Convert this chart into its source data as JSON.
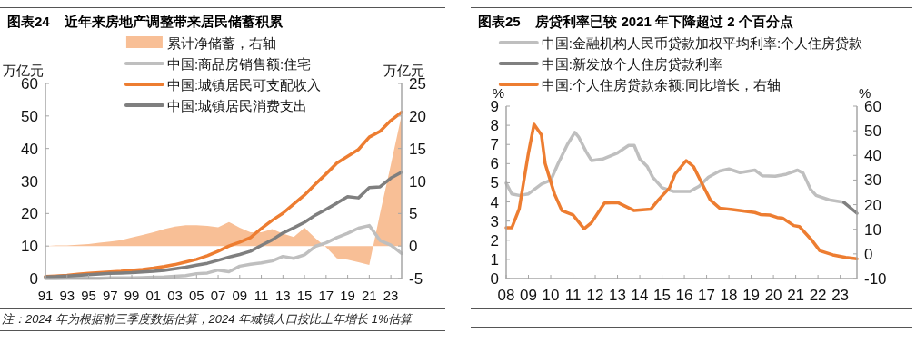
{
  "chart_data": [
    {
      "type": "line",
      "title": "图表24    近年来房地产调整带来居民储蓄积累",
      "ylabel": "万亿元",
      "y2label": "万亿元",
      "legend": "top",
      "categories": [
        "91",
        null,
        "93",
        null,
        "95",
        null,
        "97",
        null,
        "99",
        null,
        "01",
        null,
        "03",
        null,
        "05",
        null,
        "07",
        null,
        "09",
        null,
        "11",
        null,
        "13",
        null,
        "15",
        null,
        "17",
        null,
        "19",
        null,
        "21",
        null,
        "23",
        null
      ],
      "ylim": [
        0,
        60
      ],
      "yticks": [
        0,
        10,
        20,
        30,
        40,
        50,
        60
      ],
      "y2lim": [
        -5,
        25
      ],
      "y2ticks": [
        -5,
        0,
        5,
        10,
        15,
        20,
        25
      ],
      "series": [
        {
          "name": "累计净储蓄，右轴",
          "type": "area",
          "axis": "y2",
          "color": "#f8bf96",
          "values": [
            0,
            0.1,
            0.1,
            0.2,
            0.3,
            0.5,
            0.7,
            0.9,
            1.3,
            1.7,
            2.1,
            2.6,
            3.0,
            3.2,
            3.2,
            3.1,
            2.9,
            3.7,
            2.8,
            2.1,
            2.1,
            2.6,
            1.9,
            1.4,
            2.8,
            1.2,
            -0.2,
            -1.9,
            -2.1,
            -2.5,
            -2.9,
            5.0,
            12.5,
            20.2
          ]
        },
        {
          "name": "中国:商品房销售额:住宅",
          "color": "#bfbfbf",
          "values": [
            0.0,
            0.0,
            0.1,
            0.1,
            0.1,
            0.1,
            0.2,
            0.2,
            0.2,
            0.3,
            0.4,
            0.5,
            0.7,
            0.9,
            1.5,
            1.7,
            2.6,
            2.1,
            3.8,
            4.4,
            4.8,
            5.4,
            6.8,
            6.2,
            7.3,
            9.9,
            11.0,
            12.6,
            13.9,
            15.5,
            16.3,
            11.7,
            10.3,
            7.7
          ]
        },
        {
          "name": "中国:城镇居民可支配收入",
          "color": "#ed7d31",
          "values": [
            0.6,
            0.8,
            1.0,
            1.3,
            1.6,
            1.8,
            2.0,
            2.2,
            2.5,
            2.8,
            3.2,
            3.7,
            4.3,
            5.1,
            5.9,
            7.0,
            8.4,
            10.0,
            11.2,
            12.6,
            15.4,
            17.9,
            20.1,
            22.9,
            25.7,
            29.0,
            32.2,
            35.5,
            37.6,
            39.7,
            43.5,
            45.3,
            48.6,
            51.2
          ]
        },
        {
          "name": "中国:城镇居民消费支出",
          "color": "#7f7f7f",
          "values": [
            0.5,
            0.6,
            0.8,
            1.0,
            1.2,
            1.4,
            1.6,
            1.7,
            1.8,
            2.0,
            2.2,
            2.5,
            3.0,
            3.5,
            4.1,
            4.7,
            5.6,
            6.6,
            7.4,
            8.4,
            10.2,
            11.9,
            14.0,
            15.6,
            17.3,
            19.5,
            21.3,
            23.2,
            25.2,
            24.8,
            28.0,
            28.2,
            30.9,
            32.7
          ]
        }
      ],
      "annotations": [
        "注：2024 年为根据前三季度数据估算，2024 年城镇人口按比上年增长 1%估算"
      ]
    },
    {
      "type": "line",
      "title": "图表25    房贷利率已较 2021 年下降超过 2 个百分点",
      "ylabel": "%",
      "y2label": "%",
      "legend": "top",
      "xlim": [
        "2008-01",
        "2023-10"
      ],
      "xticks": [
        {
          "value": "2008-01",
          "label": "08"
        },
        {
          "value": "2009-01",
          "label": "09"
        },
        {
          "value": "2010-01",
          "label": "10"
        },
        {
          "value": "2011-01",
          "label": "11"
        },
        {
          "value": "2012-01",
          "label": "12"
        },
        {
          "value": "2013-01",
          "label": "13"
        },
        {
          "value": "2014-01",
          "label": "14"
        },
        {
          "value": "2015-01",
          "label": "15"
        },
        {
          "value": "2016-01",
          "label": "16"
        },
        {
          "value": "2017-01",
          "label": "17"
        },
        {
          "value": "2018-01",
          "label": "18"
        },
        {
          "value": "2019-01",
          "label": "19"
        },
        {
          "value": "2020-01",
          "label": "20"
        },
        {
          "value": "2021-01",
          "label": "21"
        },
        {
          "value": "2022-01",
          "label": "22"
        },
        {
          "value": "2023-01",
          "label": "23"
        }
      ],
      "ylim": [
        0,
        9
      ],
      "yticks": [
        0,
        1,
        2,
        3,
        4,
        5,
        6,
        7,
        8,
        9
      ],
      "y2lim": [
        -10,
        60
      ],
      "y2ticks": [
        -10,
        0,
        10,
        20,
        30,
        40,
        50,
        60
      ],
      "series": [
        {
          "name": "中国:金融机构人民币贷款加权平均利率:个人住房贷款",
          "color": "#bfbfbf",
          "x": [
            "2008-01",
            "2008-04",
            "2008-08",
            "2009-01",
            "2009-08",
            "2010-01",
            "2010-05",
            "2010-10",
            "2011-02",
            "2011-04",
            "2011-08",
            "2011-11",
            "2012-05",
            "2013-01",
            "2013-07",
            "2013-10",
            "2014-01",
            "2014-05",
            "2014-08",
            "2015-01",
            "2015-07",
            "2016-04",
            "2016-09",
            "2017-02",
            "2017-08",
            "2018-01",
            "2018-07",
            "2019-03",
            "2019-07",
            "2020-02",
            "2020-08",
            "2021-02",
            "2021-05",
            "2021-09",
            "2021-12",
            "2022-07",
            "2023-03"
          ],
          "values": [
            4.98,
            4.42,
            4.34,
            4.42,
            4.93,
            5.13,
            6.0,
            7.0,
            7.63,
            7.4,
            6.64,
            6.16,
            6.24,
            6.56,
            6.95,
            6.95,
            6.24,
            5.85,
            5.29,
            4.74,
            4.55,
            4.55,
            4.82,
            5.29,
            5.61,
            5.72,
            5.53,
            5.66,
            5.37,
            5.34,
            5.45,
            5.66,
            5.5,
            4.66,
            4.34,
            4.11,
            3.98
          ]
        },
        {
          "name": "中国:新发放个人住房贷款利率",
          "color": "#808080",
          "x": [
            "2023-03",
            "2023-10"
          ],
          "values": [
            3.97,
            3.41
          ]
        },
        {
          "name": "中国:个人住房贷款余额:同比增长，右轴",
          "axis": "y2",
          "color": "#ed7d31",
          "x": [
            "2008-01",
            "2008-04",
            "2008-08",
            "2009-01",
            "2009-04",
            "2009-08",
            "2009-10",
            "2010-03",
            "2010-07",
            "2011-01",
            "2011-07",
            "2011-11",
            "2012-06",
            "2013-01",
            "2013-10",
            "2014-07",
            "2014-11",
            "2015-05",
            "2015-08",
            "2016-02",
            "2016-06",
            "2016-10",
            "2017-03",
            "2017-08",
            "2018-03",
            "2019-03",
            "2019-06",
            "2019-11",
            "2020-03",
            "2020-06",
            "2020-12",
            "2021-03",
            "2021-10",
            "2022-02",
            "2022-09",
            "2023-04",
            "2023-10"
          ],
          "values": [
            10.6,
            10.6,
            18.2,
            41.0,
            52.6,
            48.3,
            36.7,
            24.4,
            17.6,
            15.8,
            10.2,
            12.7,
            20.7,
            20.9,
            17.6,
            18.2,
            21.9,
            26.8,
            32.4,
            37.9,
            35.4,
            29.3,
            21.9,
            18.6,
            18.0,
            16.8,
            16.0,
            15.8,
            14.8,
            14.5,
            11.5,
            11.1,
            5.3,
            1.3,
            -0.4,
            -1.4,
            -2.0
          ]
        }
      ]
    }
  ]
}
